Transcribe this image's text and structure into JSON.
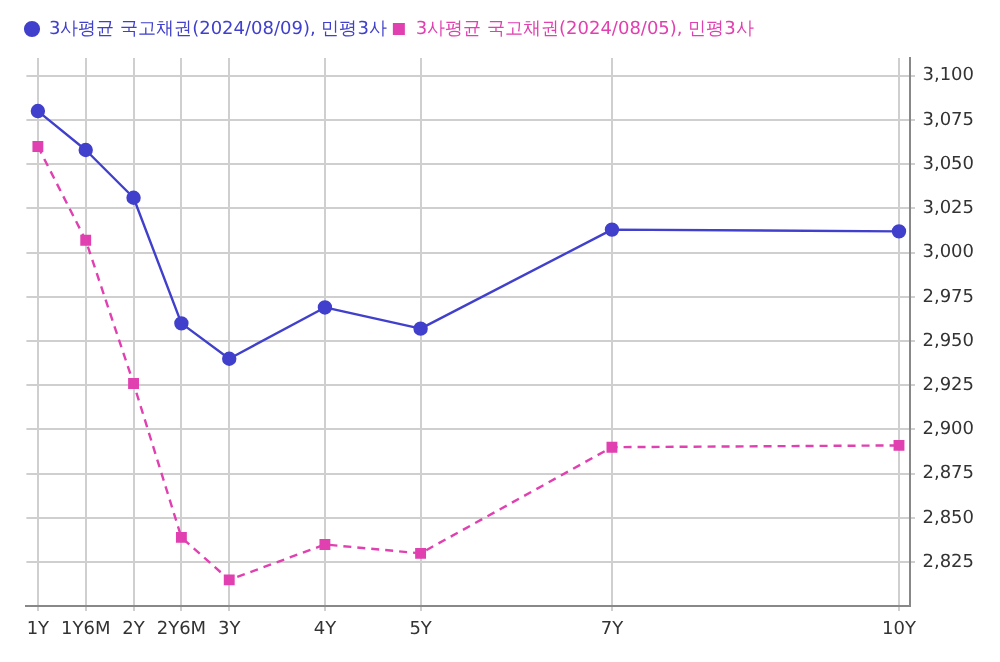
{
  "chart_data": {
    "type": "line",
    "x": [
      1,
      1.5,
      2,
      2.5,
      3,
      4,
      5,
      7,
      10
    ],
    "series": [
      {
        "name": "3사평균 국고채권(2024/08/09), 민평3사",
        "color": "#4040cc",
        "marker": "circle",
        "line_style": "solid",
        "values": [
          3080,
          3058,
          3031,
          2960,
          2940,
          2969,
          2957,
          3013,
          3012
        ]
      },
      {
        "name": "3사평균 국고채권(2024/08/05), 민평3사",
        "color": "#e040b0",
        "marker": "square",
        "line_style": "dashed",
        "values": [
          3060,
          3007,
          2926,
          2839,
          2815,
          2835,
          2830,
          2890,
          2891
        ]
      }
    ],
    "xlim": [
      0.88,
      10.12
    ],
    "xticks": [
      {
        "value": 1,
        "label": "1Y"
      },
      {
        "value": 1.5,
        "label": "1Y6M"
      },
      {
        "value": 2,
        "label": "2Y"
      },
      {
        "value": 2.5,
        "label": "2Y6M"
      },
      {
        "value": 3,
        "label": "3Y"
      },
      {
        "value": 4,
        "label": "4Y"
      },
      {
        "value": 5,
        "label": "5Y"
      },
      {
        "value": 7,
        "label": "7Y"
      },
      {
        "value": 10,
        "label": "10Y"
      }
    ],
    "ylim": [
      2800,
      3110
    ],
    "yticks": [
      {
        "value": 2825,
        "label": "2,825"
      },
      {
        "value": 2850,
        "label": "2,850"
      },
      {
        "value": 2875,
        "label": "2,875"
      },
      {
        "value": 2900,
        "label": "2,900"
      },
      {
        "value": 2925,
        "label": "2,925"
      },
      {
        "value": 2950,
        "label": "2,950"
      },
      {
        "value": 2975,
        "label": "2,975"
      },
      {
        "value": 3000,
        "label": "3,000"
      },
      {
        "value": 3025,
        "label": "3,025"
      },
      {
        "value": 3050,
        "label": "3,050"
      },
      {
        "value": 3075,
        "label": "3,075"
      },
      {
        "value": 3100,
        "label": "3,100"
      }
    ],
    "grid": true,
    "legend": "top left"
  }
}
